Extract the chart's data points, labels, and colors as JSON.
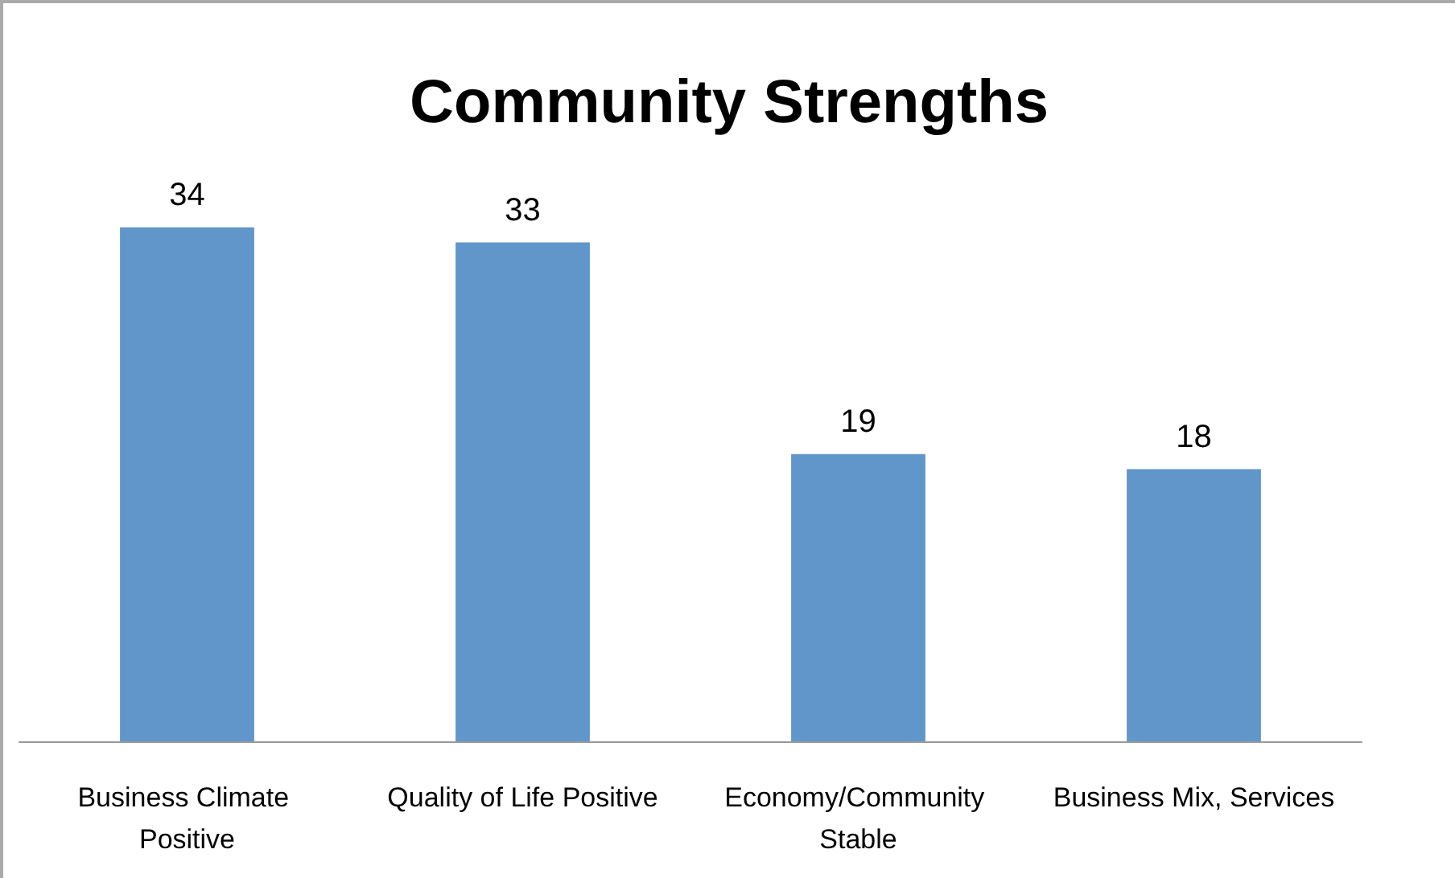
{
  "chart_data": {
    "type": "bar",
    "title": "Community Strengths",
    "categories": [
      "Business Climate Positive",
      "Quality of Life Positive",
      "Economy/Community Stable",
      "Business Mix, Services"
    ],
    "values": [
      34,
      33,
      19,
      18
    ],
    "color": "#6096c9",
    "data_labels": true
  }
}
